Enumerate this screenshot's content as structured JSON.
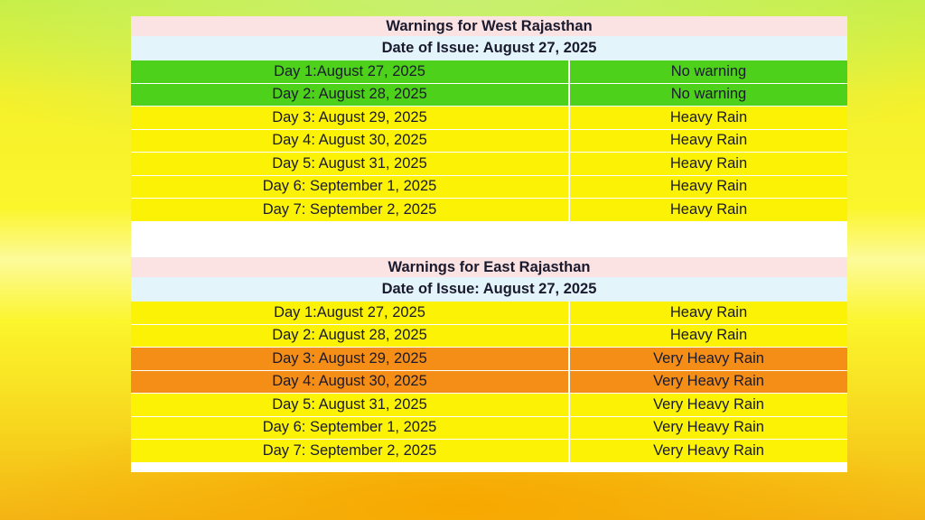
{
  "west": {
    "title": "Warnings for West Rajasthan",
    "issue": "Date of Issue: August 27, 2025",
    "rows": [
      {
        "day": "Day 1:August 27, 2025",
        "warning": "No warning",
        "color": "#4ed11a"
      },
      {
        "day": "Day 2: August 28, 2025",
        "warning": "No warning",
        "color": "#4ed11a"
      },
      {
        "day": "Day 3: August 29, 2025",
        "warning": "Heavy Rain",
        "color": "#fbf206"
      },
      {
        "day": "Day 4: August 30, 2025",
        "warning": "Heavy Rain",
        "color": "#fbf206"
      },
      {
        "day": "Day 5: August 31, 2025",
        "warning": "Heavy Rain",
        "color": "#fbf206"
      },
      {
        "day": "Day 6: September 1, 2025",
        "warning": "Heavy Rain",
        "color": "#fbf206"
      },
      {
        "day": "Day 7: September 2, 2025",
        "warning": "Heavy Rain",
        "color": "#fbf206"
      }
    ]
  },
  "east": {
    "title": "Warnings for East Rajasthan",
    "issue": "Date of Issue: August 27, 2025",
    "rows": [
      {
        "day": "Day 1:August 27, 2025",
        "warning": "Heavy Rain",
        "color": "#fbf206"
      },
      {
        "day": "Day 2: August 28, 2025",
        "warning": "Heavy Rain",
        "color": "#fbf206"
      },
      {
        "day": "Day 3: August 29, 2025",
        "warning": "Very Heavy Rain",
        "color": "#f58e16"
      },
      {
        "day": "Day 4: August 30, 2025",
        "warning": "Very Heavy Rain",
        "color": "#f58e16"
      },
      {
        "day": "Day 5: August 31, 2025",
        "warning": "Very Heavy Rain",
        "color": "#fbf206"
      },
      {
        "day": "Day 6: September 1, 2025",
        "warning": "Very Heavy Rain",
        "color": "#fbf206"
      },
      {
        "day": "Day 7: September 2, 2025",
        "warning": "Very Heavy Rain",
        "color": "#fbf206"
      }
    ]
  }
}
